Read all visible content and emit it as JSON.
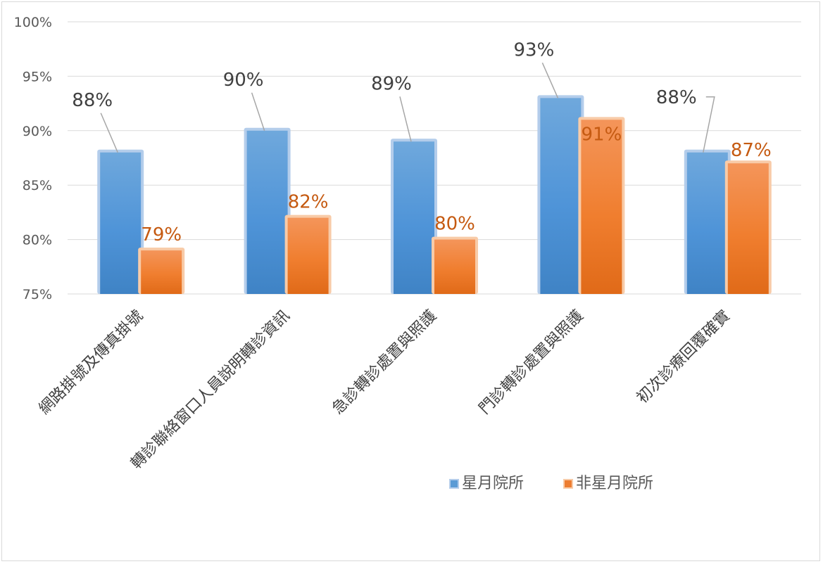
{
  "chart_data": {
    "type": "bar",
    "categories": [
      "網路掛號及傳真掛號",
      "轉診聯絡窗口人員說明轉診資訊",
      "急診轉診處置與照護",
      "門診轉診處置與照護",
      "初次診療回覆確實"
    ],
    "series": [
      {
        "name": "星月院所",
        "values": [
          88,
          90,
          89,
          93,
          88
        ],
        "labels": [
          "88%",
          "90%",
          "89%",
          "93%",
          "88%"
        ],
        "color": "#5b9bd5"
      },
      {
        "name": "非星月院所",
        "values": [
          79,
          82,
          80,
          91,
          87
        ],
        "labels": [
          "79%",
          "82%",
          "80%",
          "91%",
          "87%"
        ],
        "color": "#ed7d31"
      }
    ],
    "ylim": [
      75,
      100
    ],
    "yticks": [
      75,
      80,
      85,
      90,
      95,
      100
    ],
    "ytick_labels": [
      "75%",
      "80%",
      "85%",
      "90%",
      "95%",
      "100%"
    ],
    "grid": true,
    "legend_position": "bottom-right",
    "title": "",
    "xlabel": "",
    "ylabel": ""
  }
}
